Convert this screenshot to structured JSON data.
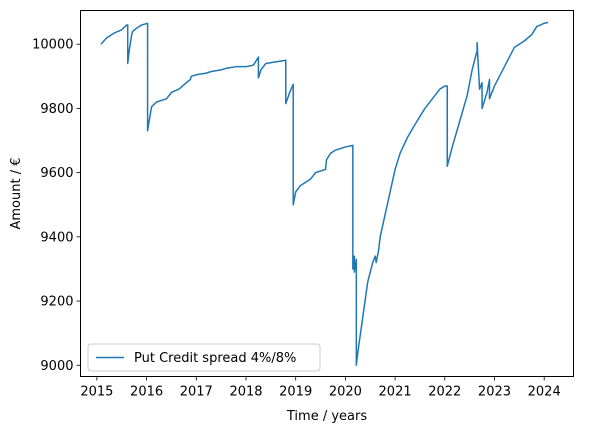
{
  "chart_data": {
    "type": "line",
    "title": "",
    "xlabel": "Time / years",
    "ylabel": "Amount / €",
    "xlim": [
      2014.67,
      2024.59
    ],
    "ylim": [
      8965,
      10105
    ],
    "x_ticks": [
      2015,
      2016,
      2017,
      2018,
      2019,
      2020,
      2021,
      2022,
      2023,
      2024
    ],
    "y_ticks": [
      9000,
      9200,
      9400,
      9600,
      9800,
      10000
    ],
    "grid": false,
    "legend_position": "lower-left",
    "series": [
      {
        "name": "Put Credit spread 4%/8%",
        "color": "#1f77b4",
        "x": [
          2015.08,
          2015.2,
          2015.35,
          2015.5,
          2015.6,
          2015.62,
          2015.62,
          2015.65,
          2015.7,
          2015.72,
          2015.8,
          2015.9,
          2016.02,
          2016.02,
          2016.05,
          2016.1,
          2016.2,
          2016.4,
          2016.5,
          2016.65,
          2016.8,
          2016.88,
          2016.9,
          2017.0,
          2017.2,
          2017.3,
          2017.5,
          2017.6,
          2017.8,
          2018.0,
          2018.15,
          2018.25,
          2018.25,
          2018.3,
          2018.4,
          2018.6,
          2018.8,
          2018.8,
          2018.88,
          2018.95,
          2018.95,
          2019.0,
          2019.1,
          2019.3,
          2019.4,
          2019.6,
          2019.62,
          2019.7,
          2019.8,
          2020.0,
          2020.15,
          2020.15,
          2020.18,
          2020.18,
          2020.22,
          2020.22,
          2020.25,
          2020.35,
          2020.45,
          2020.55,
          2020.6,
          2020.62,
          2020.67,
          2020.7,
          2020.8,
          2020.9,
          2021.0,
          2021.1,
          2021.25,
          2021.4,
          2021.6,
          2021.75,
          2021.9,
          2022.0,
          2022.05,
          2022.05,
          2022.15,
          2022.3,
          2022.45,
          2022.55,
          2022.65,
          2022.65,
          2022.7,
          2022.75,
          2022.75,
          2022.85,
          2022.9,
          2022.9,
          2023.0,
          2023.2,
          2023.4,
          2023.6,
          2023.75,
          2023.85,
          2024.0,
          2024.08
        ],
        "y": [
          10000,
          10020,
          10035,
          10045,
          10060,
          10060,
          9940,
          9980,
          10030,
          10040,
          10050,
          10060,
          10065,
          9730,
          9760,
          9805,
          9820,
          9830,
          9850,
          9860,
          9880,
          9890,
          9900,
          9905,
          9910,
          9915,
          9920,
          9925,
          9930,
          9930,
          9935,
          9960,
          9895,
          9920,
          9940,
          9945,
          9950,
          9815,
          9850,
          9875,
          9500,
          9540,
          9560,
          9580,
          9600,
          9610,
          9640,
          9660,
          9670,
          9680,
          9685,
          9300,
          9340,
          9290,
          9330,
          9000,
          9040,
          9150,
          9260,
          9320,
          9340,
          9320,
          9360,
          9400,
          9470,
          9540,
          9610,
          9660,
          9710,
          9750,
          9800,
          9830,
          9860,
          9870,
          9870,
          9620,
          9680,
          9760,
          9840,
          9920,
          9980,
          10005,
          9860,
          9880,
          9800,
          9850,
          9890,
          9830,
          9870,
          9930,
          9990,
          10010,
          10030,
          10055,
          10065,
          10068
        ]
      }
    ]
  }
}
